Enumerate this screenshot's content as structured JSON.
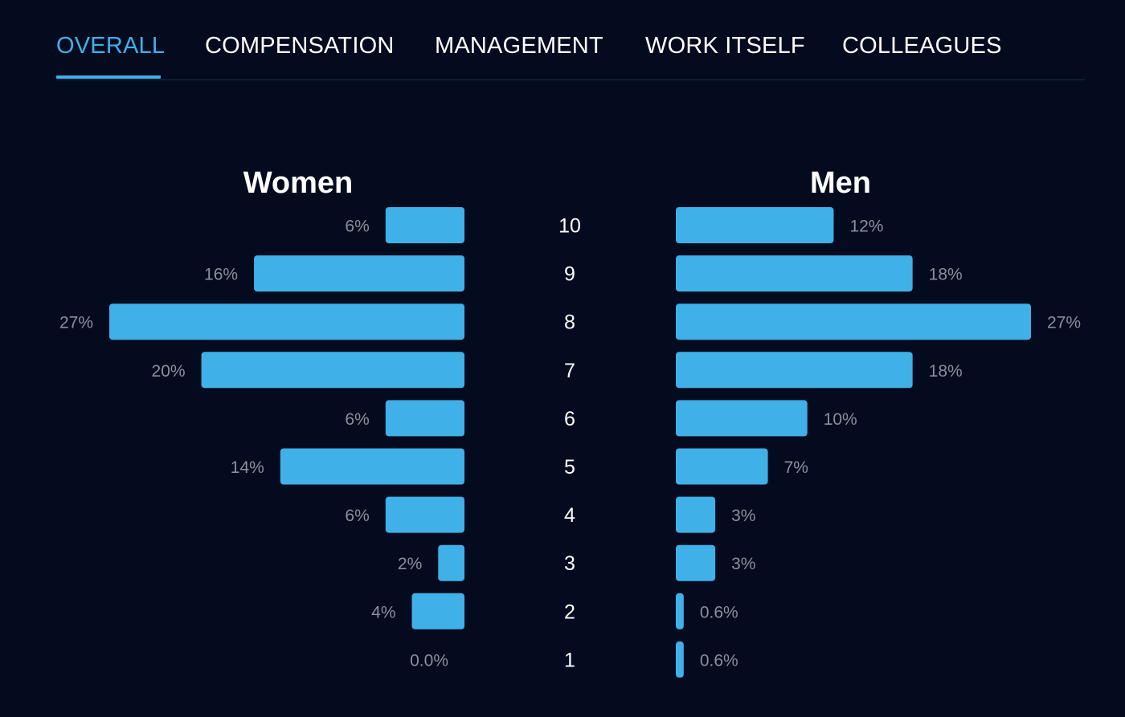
{
  "tabs": [
    {
      "label": "OVERALL",
      "active": true
    },
    {
      "label": "COMPENSATION",
      "active": false
    },
    {
      "label": "MANAGEMENT",
      "active": false
    },
    {
      "label": "WORK ITSELF",
      "active": false
    },
    {
      "label": "COLLEAGUES",
      "active": false
    }
  ],
  "colors": {
    "background": "#050b1f",
    "bar": "#3fb0e8",
    "accent": "#3fb0e8",
    "value_label": "#8a8f99",
    "text": "#ffffff"
  },
  "chart_data": {
    "type": "bar",
    "orientation": "horizontal-butterfly",
    "categories": [
      "10",
      "9",
      "8",
      "7",
      "6",
      "5",
      "4",
      "3",
      "2",
      "1"
    ],
    "series": [
      {
        "name": "Women",
        "side": "left",
        "values": [
          6,
          16,
          27,
          20,
          6,
          14,
          6,
          2,
          4,
          0.0
        ],
        "labels": [
          "6%",
          "16%",
          "27%",
          "20%",
          "6%",
          "14%",
          "6%",
          "2%",
          "4%",
          "0.0%"
        ]
      },
      {
        "name": "Men",
        "side": "right",
        "values": [
          12,
          18,
          27,
          18,
          10,
          7,
          3,
          3,
          0.6,
          0.6
        ],
        "labels": [
          "12%",
          "18%",
          "27%",
          "18%",
          "10%",
          "7%",
          "3%",
          "3%",
          "0.6%",
          "0.6%"
        ]
      }
    ],
    "unit": "%",
    "xlim": [
      0,
      27
    ]
  }
}
